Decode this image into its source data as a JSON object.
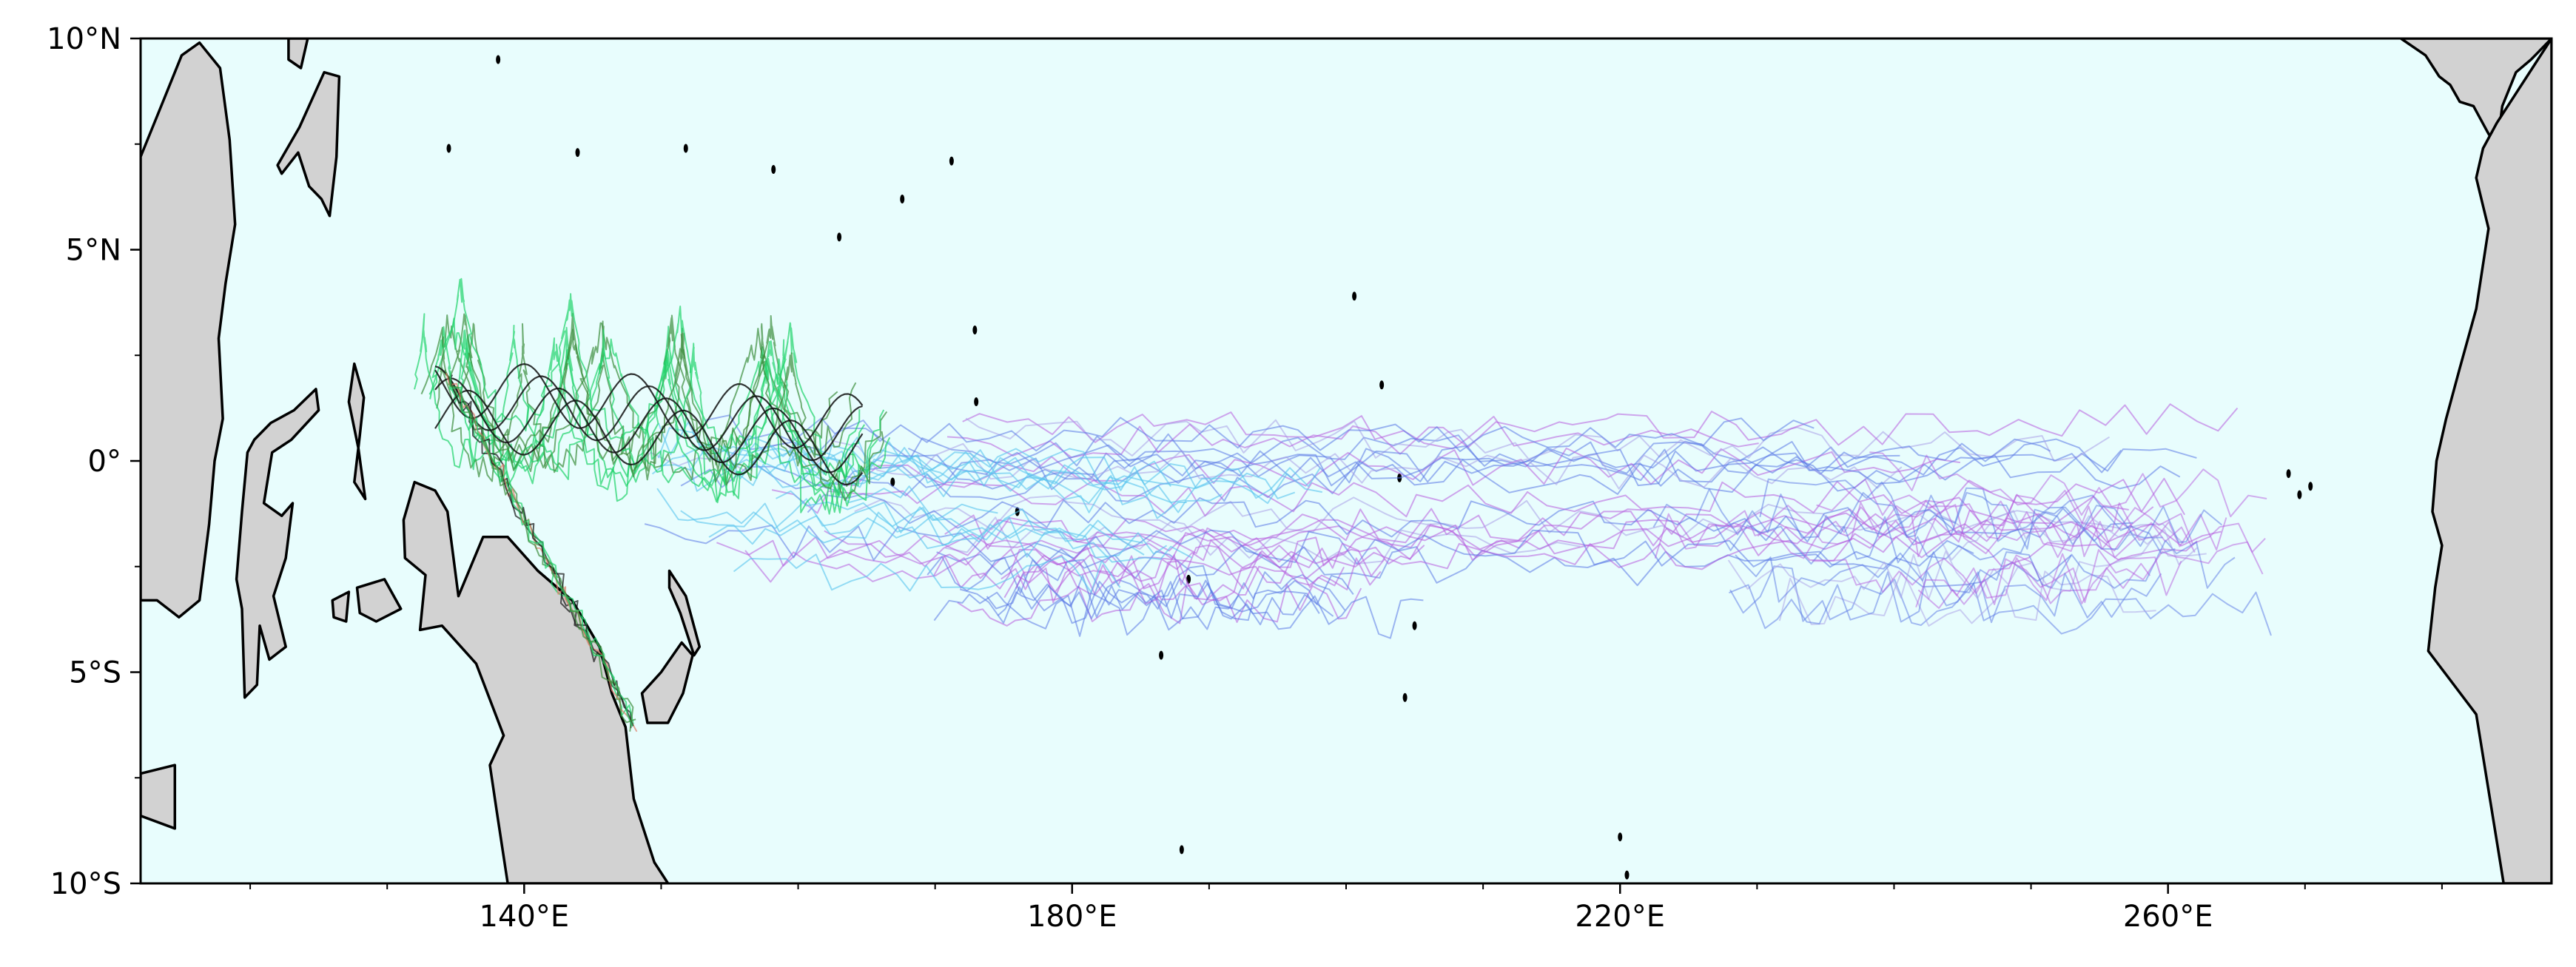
{
  "map": {
    "extent": {
      "lon_min": 112,
      "lon_max": 288,
      "lat_min": -10,
      "lat_max": 10
    },
    "colors": {
      "ocean": "#e8fdfd",
      "land": "#d2d2d2",
      "coast": "#000000",
      "track_green": "#1fd36a",
      "track_dark_green": "#3c8d3c",
      "track_black": "#111111",
      "track_purple": "#b65ddf",
      "track_blue": "#5a78e6",
      "track_lightblue": "#59c4ee",
      "track_lavender": "#a9a0e8",
      "track_salmon": "#e07e6a"
    },
    "x_ticks": [
      {
        "lon": 140,
        "label": "140°E"
      },
      {
        "lon": 180,
        "label": "180°E"
      },
      {
        "lon": 220,
        "label": "220°E"
      },
      {
        "lon": 260,
        "label": "260°E"
      }
    ],
    "y_ticks": [
      {
        "lat": 10,
        "label": "10°N"
      },
      {
        "lat": 5,
        "label": "5°N"
      },
      {
        "lat": 0,
        "label": "0°"
      },
      {
        "lat": -5,
        "label": "5°S"
      },
      {
        "lat": -10,
        "label": "10°S"
      }
    ],
    "x_minor_ticks": [
      120,
      130,
      150,
      160,
      170,
      190,
      200,
      210,
      230,
      240,
      250,
      270,
      280
    ],
    "y_minor_ticks": [
      7.5,
      2.5,
      -2.5,
      -7.5
    ],
    "landmasses": [
      {
        "name": "borneo",
        "points": [
          [
            112,
            7.2
          ],
          [
            113.5,
            8.4
          ],
          [
            115,
            9.6
          ],
          [
            116.3,
            9.9
          ],
          [
            117.8,
            9.3
          ],
          [
            118.5,
            7.6
          ],
          [
            118.9,
            5.6
          ],
          [
            118.2,
            4.2
          ],
          [
            117.7,
            2.9
          ],
          [
            118.0,
            1.0
          ],
          [
            117.4,
            0.0
          ],
          [
            117.0,
            -1.5
          ],
          [
            116.3,
            -3.3
          ],
          [
            114.8,
            -3.7
          ],
          [
            113.2,
            -3.3
          ],
          [
            112,
            -3.3
          ]
        ]
      },
      {
        "name": "java",
        "points": [
          [
            112,
            -7.4
          ],
          [
            114.5,
            -7.2
          ],
          [
            114.5,
            -8.7
          ],
          [
            112,
            -8.4
          ]
        ]
      },
      {
        "name": "sulawesi",
        "points": [
          [
            120.3,
            0.5
          ],
          [
            121.5,
            0.9
          ],
          [
            123.2,
            1.2
          ],
          [
            124.8,
            1.7
          ],
          [
            125.0,
            1.2
          ],
          [
            123.0,
            0.5
          ],
          [
            121.6,
            0.2
          ],
          [
            121.0,
            -1.0
          ],
          [
            122.3,
            -1.3
          ],
          [
            123.1,
            -1.0
          ],
          [
            122.6,
            -2.3
          ],
          [
            121.7,
            -3.2
          ],
          [
            122.6,
            -4.4
          ],
          [
            121.4,
            -4.7
          ],
          [
            120.7,
            -3.9
          ],
          [
            120.5,
            -5.3
          ],
          [
            119.6,
            -5.6
          ],
          [
            119.4,
            -3.5
          ],
          [
            119.0,
            -2.8
          ],
          [
            119.4,
            -1.2
          ],
          [
            119.8,
            0.2
          ]
        ]
      },
      {
        "name": "mindanao",
        "points": [
          [
            122.0,
            7.0
          ],
          [
            123.6,
            7.9
          ],
          [
            125.4,
            9.2
          ],
          [
            126.5,
            9.1
          ],
          [
            126.3,
            7.2
          ],
          [
            125.8,
            5.8
          ],
          [
            125.2,
            6.2
          ],
          [
            124.3,
            6.5
          ],
          [
            123.5,
            7.3
          ],
          [
            122.3,
            6.8
          ]
        ]
      },
      {
        "name": "luzon-visayas",
        "points": [
          [
            122.8,
            10
          ],
          [
            124.2,
            10
          ],
          [
            123.7,
            9.3
          ],
          [
            122.8,
            9.5
          ]
        ]
      },
      {
        "name": "halmahera",
        "points": [
          [
            127.6,
            2.3
          ],
          [
            128.3,
            1.5
          ],
          [
            128.0,
            0.6
          ],
          [
            127.6,
            -0.5
          ],
          [
            128.4,
            -0.9
          ],
          [
            127.9,
            0.3
          ],
          [
            127.2,
            1.4
          ]
        ]
      },
      {
        "name": "seram",
        "points": [
          [
            127.8,
            -3.0
          ],
          [
            129.8,
            -2.8
          ],
          [
            131.0,
            -3.5
          ],
          [
            129.2,
            -3.8
          ],
          [
            128.0,
            -3.6
          ]
        ]
      },
      {
        "name": "buru",
        "points": [
          [
            126.0,
            -3.3
          ],
          [
            127.2,
            -3.1
          ],
          [
            127.0,
            -3.8
          ],
          [
            126.1,
            -3.7
          ]
        ]
      },
      {
        "name": "new-guinea",
        "points": [
          [
            131.2,
            -1.4
          ],
          [
            132.0,
            -0.5
          ],
          [
            133.5,
            -0.7
          ],
          [
            134.4,
            -1.2
          ],
          [
            135.2,
            -3.2
          ],
          [
            137.0,
            -1.8
          ],
          [
            138.8,
            -1.8
          ],
          [
            141.0,
            -2.6
          ],
          [
            143.5,
            -3.3
          ],
          [
            145.5,
            -4.4
          ],
          [
            146.4,
            -5.5
          ],
          [
            147.4,
            -6.3
          ],
          [
            148.0,
            -8.0
          ],
          [
            149.5,
            -9.5
          ],
          [
            150.5,
            -10
          ],
          [
            138.8,
            -10
          ],
          [
            138.0,
            -8.3
          ],
          [
            137.5,
            -7.2
          ],
          [
            138.5,
            -6.5
          ],
          [
            136.5,
            -4.8
          ],
          [
            134.0,
            -3.9
          ],
          [
            132.4,
            -4.0
          ],
          [
            132.8,
            -2.7
          ],
          [
            131.3,
            -2.3
          ]
        ]
      },
      {
        "name": "new-britain",
        "points": [
          [
            148.6,
            -5.5
          ],
          [
            150.0,
            -5.0
          ],
          [
            151.5,
            -4.3
          ],
          [
            152.3,
            -4.6
          ],
          [
            151.6,
            -5.5
          ],
          [
            150.5,
            -6.2
          ],
          [
            149.0,
            -6.2
          ]
        ]
      },
      {
        "name": "new-ireland",
        "points": [
          [
            150.6,
            -2.6
          ],
          [
            151.8,
            -3.2
          ],
          [
            152.8,
            -4.4
          ],
          [
            152.4,
            -4.6
          ],
          [
            151.4,
            -3.6
          ],
          [
            150.6,
            -3.0
          ]
        ]
      },
      {
        "name": "central-america",
        "points": [
          [
            277,
            10
          ],
          [
            278.8,
            9.6
          ],
          [
            279.8,
            9.1
          ],
          [
            280.6,
            8.9
          ],
          [
            281.3,
            8.5
          ],
          [
            282.3,
            8.4
          ],
          [
            283.3,
            7.8
          ],
          [
            284.0,
            7.4
          ],
          [
            284.4,
            8.4
          ],
          [
            285.4,
            9.2
          ],
          [
            286.5,
            9.5
          ],
          [
            288,
            10
          ]
        ]
      },
      {
        "name": "south-america",
        "points": [
          [
            288,
            10
          ],
          [
            288,
            -10
          ],
          [
            284.5,
            -10
          ],
          [
            283.5,
            -8.0
          ],
          [
            282.5,
            -6.0
          ],
          [
            279.0,
            -4.5
          ],
          [
            279.5,
            -3.0
          ],
          [
            280.0,
            -2.0
          ],
          [
            279.3,
            -1.2
          ],
          [
            279.6,
            0.0
          ],
          [
            280.3,
            1.0
          ],
          [
            281.3,
            2.2
          ],
          [
            282.5,
            3.6
          ],
          [
            283.4,
            5.5
          ],
          [
            282.5,
            6.7
          ],
          [
            283.0,
            7.4
          ],
          [
            284.0,
            8.0
          ]
        ]
      }
    ],
    "islands": [
      {
        "name": "palau",
        "lon": 134.5,
        "lat": 7.4
      },
      {
        "name": "yap",
        "lon": 138.1,
        "lat": 9.5
      },
      {
        "name": "woleai",
        "lon": 143.9,
        "lat": 7.3
      },
      {
        "name": "chuuk",
        "lon": 151.8,
        "lat": 7.4
      },
      {
        "name": "pohnpei",
        "lon": 158.2,
        "lat": 6.9
      },
      {
        "name": "kosrae",
        "lon": 163.0,
        "lat": 5.3
      },
      {
        "name": "marshall-a",
        "lon": 167.6,
        "lat": 6.2
      },
      {
        "name": "marshall-b",
        "lon": 171.2,
        "lat": 7.1
      },
      {
        "name": "kiribati-a",
        "lon": 172.9,
        "lat": 3.1
      },
      {
        "name": "kiribati-b",
        "lon": 173.0,
        "lat": 1.4
      },
      {
        "name": "kiribati-c",
        "lon": 176.0,
        "lat": -1.2
      },
      {
        "name": "nauru",
        "lon": 166.9,
        "lat": -0.5
      },
      {
        "name": "kiritimati",
        "lon": 202.6,
        "lat": 1.8
      },
      {
        "name": "fanning",
        "lon": 200.6,
        "lat": 3.9
      },
      {
        "name": "phoenix-a",
        "lon": 188.5,
        "lat": -2.8
      },
      {
        "name": "phoenix-b",
        "lon": 186.5,
        "lat": -4.6
      },
      {
        "name": "jarvis",
        "lon": 203.9,
        "lat": -0.4
      },
      {
        "name": "malden",
        "lon": 205.0,
        "lat": -3.9
      },
      {
        "name": "starbuck",
        "lon": 204.3,
        "lat": -5.6
      },
      {
        "name": "tokelau",
        "lon": 188.0,
        "lat": -9.2
      },
      {
        "name": "marquesas-a",
        "lon": 220.0,
        "lat": -8.9
      },
      {
        "name": "marquesas-b",
        "lon": 220.5,
        "lat": -9.8
      },
      {
        "name": "galapagos-a",
        "lon": 268.8,
        "lat": -0.3
      },
      {
        "name": "galapagos-b",
        "lon": 269.6,
        "lat": -0.8
      },
      {
        "name": "galapagos-c",
        "lon": 270.4,
        "lat": -0.6
      }
    ]
  }
}
